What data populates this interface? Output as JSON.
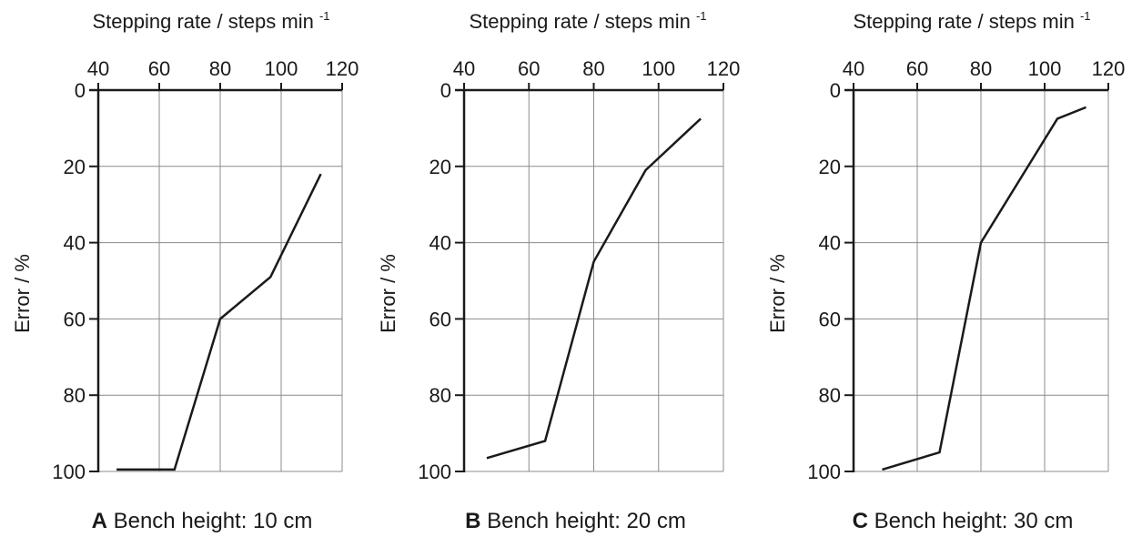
{
  "chart_data": [
    {
      "type": "line",
      "panel": "A",
      "caption": "Bench height: 10 cm",
      "xlabel": "Stepping rate / steps min",
      "xlabel_sup": "-1",
      "ylabel": "Error / %",
      "xlim": [
        40,
        120
      ],
      "ylim": [
        0,
        100
      ],
      "y_inverted": true,
      "x_axis_position": "top",
      "x_ticks": [
        "40",
        "60",
        "80",
        "100",
        "120"
      ],
      "y_ticks": [
        "0",
        "20",
        "40",
        "60",
        "80",
        "100"
      ],
      "grid": true,
      "series": [
        {
          "x": [
            46,
            65,
            80,
            96.5,
            113
          ],
          "y": [
            99.5,
            99.5,
            60,
            49,
            22
          ]
        }
      ]
    },
    {
      "type": "line",
      "panel": "B",
      "caption": "Bench height: 20 cm",
      "xlabel": "Stepping rate / steps min",
      "xlabel_sup": "-1",
      "ylabel": "Error / %",
      "xlim": [
        40,
        120
      ],
      "ylim": [
        0,
        100
      ],
      "y_inverted": true,
      "x_axis_position": "top",
      "x_ticks": [
        "40",
        "60",
        "80",
        "100",
        "120"
      ],
      "y_ticks": [
        "0",
        "20",
        "40",
        "60",
        "80",
        "100"
      ],
      "grid": true,
      "series": [
        {
          "x": [
            47,
            65,
            80,
            96,
            113
          ],
          "y": [
            96.5,
            92,
            45,
            21,
            7.5
          ]
        }
      ]
    },
    {
      "type": "line",
      "panel": "C",
      "caption": "Bench height: 30 cm",
      "xlabel": "Stepping rate / steps min",
      "xlabel_sup": "-1",
      "ylabel": "Error / %",
      "xlim": [
        40,
        120
      ],
      "ylim": [
        0,
        100
      ],
      "y_inverted": true,
      "x_axis_position": "top",
      "x_ticks": [
        "40",
        "60",
        "80",
        "100",
        "120"
      ],
      "y_ticks": [
        "0",
        "20",
        "40",
        "60",
        "80",
        "100"
      ],
      "grid": true,
      "series": [
        {
          "x": [
            49,
            67,
            80,
            104,
            113
          ],
          "y": [
            99.5,
            95,
            40,
            7.5,
            4.5
          ]
        }
      ]
    }
  ]
}
